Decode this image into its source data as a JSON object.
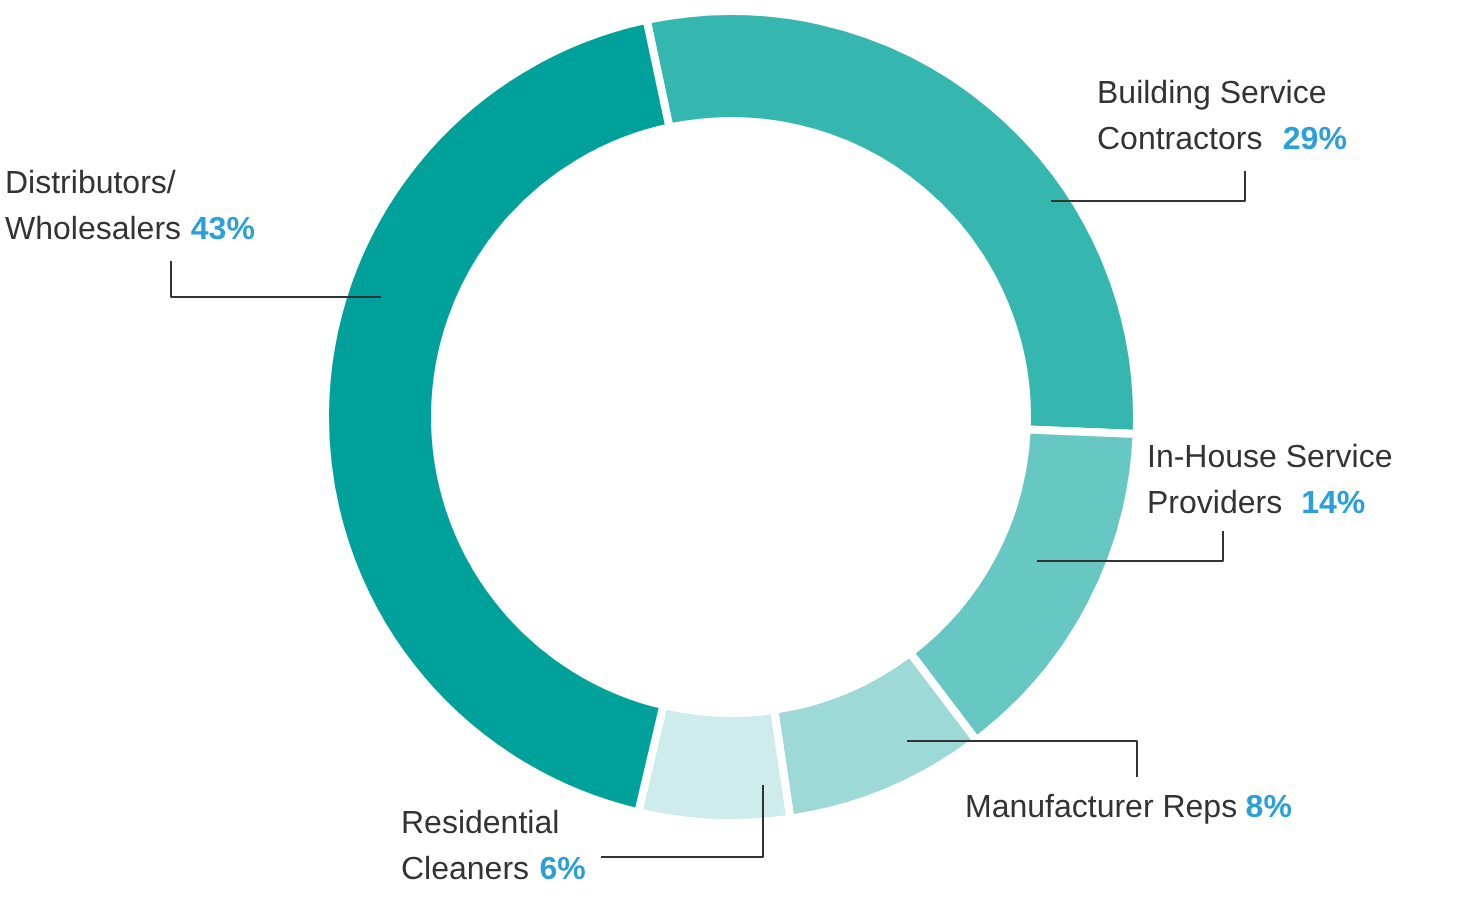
{
  "chart_data": {
    "type": "donut",
    "categories": [
      "Building Service\nContractors",
      "In-House Service\nProviders",
      "Manufacturer Reps",
      "Residential\nCleaners",
      "Distributors/\nWholesalers"
    ],
    "values": [
      29,
      14,
      8,
      6,
      43
    ],
    "colors": [
      "#35b6ae",
      "#67c8c3",
      "#9dd9d7",
      "#cdeceb",
      "#00a19a"
    ],
    "value_labels": [
      "29%",
      "14%",
      "8%",
      "6%",
      "43%"
    ]
  }
}
